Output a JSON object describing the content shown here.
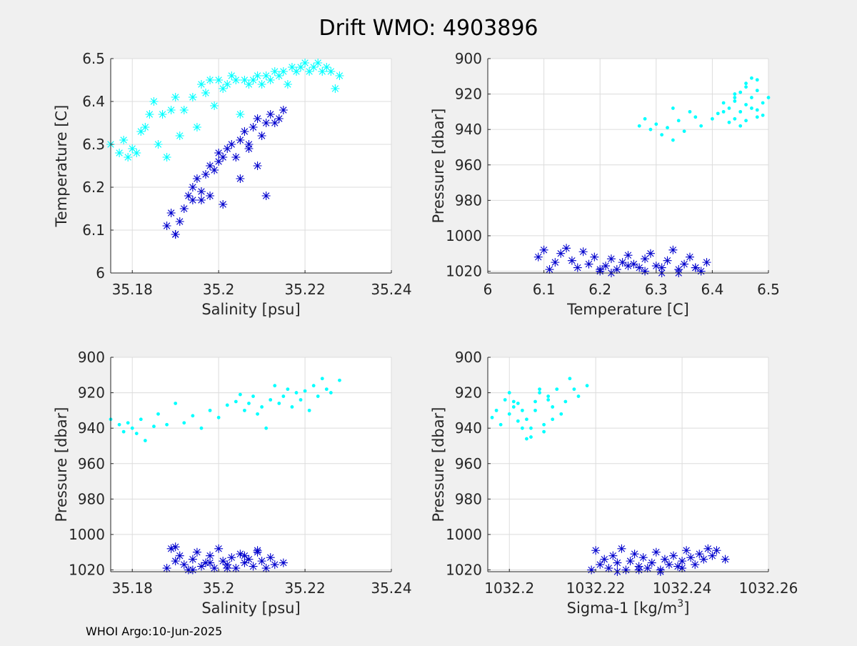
{
  "figure": {
    "title": "Drift WMO: 4903896",
    "footer": "WHOI Argo:10-Jun-2025"
  },
  "colors": {
    "cyan": "#00ffff",
    "blue": "#0000cd",
    "grid": "#dcdcdc",
    "axes_bg": "#ffffff"
  },
  "chart_data": [
    {
      "type": "scatter",
      "title": "",
      "xlabel": "Salinity [psu]",
      "ylabel": "Temperature [C]",
      "xlim": [
        35.175,
        35.24
      ],
      "ylim": [
        6.0,
        6.5
      ],
      "y_reversed": false,
      "xticks": [
        35.18,
        35.2,
        35.22,
        35.24
      ],
      "xtick_labels": [
        "35.18",
        "35.2",
        "35.22",
        "35.24"
      ],
      "yticks": [
        6.0,
        6.1,
        6.2,
        6.3,
        6.4,
        6.5
      ],
      "ytick_labels": [
        "6",
        "6.1",
        "6.2",
        "6.3",
        "6.4",
        "6.5"
      ],
      "grid": true,
      "series": [
        {
          "color": "cyan",
          "marker": "asterisk",
          "x": [
            35.175,
            35.177,
            35.178,
            35.179,
            35.18,
            35.181,
            35.182,
            35.183,
            35.184,
            35.185,
            35.186,
            35.187,
            35.188,
            35.189,
            35.19,
            35.191,
            35.192,
            35.194,
            35.195,
            35.196,
            35.197,
            35.198,
            35.199,
            35.2,
            35.201,
            35.202,
            35.203,
            35.204,
            35.205,
            35.206,
            35.207,
            35.208,
            35.209,
            35.21,
            35.211,
            35.212,
            35.213,
            35.214,
            35.215,
            35.216,
            35.217,
            35.218,
            35.219,
            35.22,
            35.221,
            35.222,
            35.223,
            35.224,
            35.225,
            35.226,
            35.227,
            35.228
          ],
          "y": [
            6.3,
            6.28,
            6.31,
            6.27,
            6.29,
            6.28,
            6.33,
            6.34,
            6.37,
            6.4,
            6.3,
            6.37,
            6.27,
            6.38,
            6.41,
            6.32,
            6.38,
            6.41,
            6.34,
            6.44,
            6.42,
            6.45,
            6.39,
            6.45,
            6.43,
            6.44,
            6.46,
            6.45,
            6.37,
            6.45,
            6.44,
            6.45,
            6.46,
            6.44,
            6.46,
            6.45,
            6.47,
            6.46,
            6.47,
            6.44,
            6.48,
            6.47,
            6.48,
            6.49,
            6.47,
            6.48,
            6.49,
            6.47,
            6.48,
            6.47,
            6.43,
            6.46
          ]
        },
        {
          "color": "blue",
          "marker": "asterisk",
          "x": [
            35.188,
            35.189,
            35.19,
            35.191,
            35.192,
            35.193,
            35.194,
            35.195,
            35.196,
            35.197,
            35.198,
            35.199,
            35.2,
            35.201,
            35.202,
            35.203,
            35.204,
            35.205,
            35.206,
            35.207,
            35.208,
            35.209,
            35.21,
            35.211,
            35.212,
            35.213,
            35.214,
            35.215,
            35.19,
            35.194,
            35.198,
            35.201,
            35.205,
            35.209,
            35.211,
            35.196,
            35.2,
            35.207
          ],
          "y": [
            6.11,
            6.14,
            6.09,
            6.12,
            6.15,
            6.18,
            6.2,
            6.22,
            6.19,
            6.23,
            6.25,
            6.24,
            6.28,
            6.27,
            6.29,
            6.3,
            6.27,
            6.31,
            6.33,
            6.29,
            6.34,
            6.36,
            6.32,
            6.35,
            6.37,
            6.35,
            6.36,
            6.38,
            6.09,
            6.17,
            6.18,
            6.16,
            6.22,
            6.25,
            6.18,
            6.17,
            6.26,
            6.3
          ]
        }
      ]
    },
    {
      "type": "scatter",
      "title": "",
      "xlabel": "Temperature [C]",
      "ylabel": "Pressure [dbar]",
      "xlim": [
        6.0,
        6.5
      ],
      "ylim": [
        900,
        1021
      ],
      "y_reversed": true,
      "xticks": [
        6.0,
        6.1,
        6.2,
        6.3,
        6.4,
        6.5
      ],
      "xtick_labels": [
        "6",
        "6.1",
        "6.2",
        "6.3",
        "6.4",
        "6.5"
      ],
      "yticks": [
        900,
        920,
        940,
        960,
        980,
        1000,
        1020
      ],
      "ytick_labels": [
        "900",
        "920",
        "940",
        "960",
        "980",
        "1000",
        "1020"
      ],
      "grid": true,
      "series": [
        {
          "color": "cyan",
          "marker": "dot",
          "x": [
            6.27,
            6.28,
            6.29,
            6.3,
            6.31,
            6.32,
            6.33,
            6.34,
            6.35,
            6.37,
            6.38,
            6.4,
            6.41,
            6.42,
            6.43,
            6.44,
            6.44,
            6.45,
            6.45,
            6.46,
            6.46,
            6.47,
            6.47,
            6.48,
            6.48,
            6.49,
            6.5,
            6.43,
            6.45,
            6.47,
            6.46,
            6.44,
            6.49,
            6.48,
            6.42,
            6.44,
            6.46,
            6.48,
            6.36,
            6.33
          ],
          "y": [
            938,
            934,
            940,
            937,
            943,
            939,
            946,
            935,
            941,
            933,
            938,
            934,
            931,
            925,
            928,
            922,
            934,
            919,
            930,
            914,
            926,
            911,
            922,
            918,
            933,
            925,
            922,
            936,
            938,
            928,
            916,
            920,
            932,
            912,
            930,
            924,
            935,
            929,
            930,
            928
          ]
        },
        {
          "color": "blue",
          "marker": "asterisk",
          "x": [
            6.09,
            6.1,
            6.11,
            6.12,
            6.13,
            6.14,
            6.15,
            6.16,
            6.17,
            6.18,
            6.19,
            6.2,
            6.21,
            6.22,
            6.23,
            6.24,
            6.25,
            6.26,
            6.27,
            6.28,
            6.29,
            6.3,
            6.31,
            6.32,
            6.33,
            6.34,
            6.35,
            6.36,
            6.37,
            6.38,
            6.39,
            6.2,
            6.22,
            6.25,
            6.28,
            6.31,
            6.34,
            6.37
          ],
          "y": [
            1012,
            1008,
            1019,
            1015,
            1010,
            1007,
            1014,
            1018,
            1009,
            1016,
            1012,
            1020,
            1017,
            1013,
            1019,
            1015,
            1011,
            1016,
            1018,
            1013,
            1010,
            1017,
            1021,
            1014,
            1008,
            1019,
            1016,
            1012,
            1018,
            1020,
            1015,
            1019,
            1021,
            1017,
            1020,
            1018,
            1021,
            1018
          ]
        }
      ]
    },
    {
      "type": "scatter",
      "title": "",
      "xlabel": "Salinity [psu]",
      "ylabel": "Pressure [dbar]",
      "xlim": [
        35.175,
        35.24
      ],
      "ylim": [
        900,
        1021
      ],
      "y_reversed": true,
      "xticks": [
        35.18,
        35.2,
        35.22,
        35.24
      ],
      "xtick_labels": [
        "35.18",
        "35.2",
        "35.22",
        "35.24"
      ],
      "yticks": [
        900,
        920,
        940,
        960,
        980,
        1000,
        1020
      ],
      "ytick_labels": [
        "900",
        "920",
        "940",
        "960",
        "980",
        "1000",
        "1020"
      ],
      "grid": true,
      "series": [
        {
          "color": "cyan",
          "marker": "dot",
          "x": [
            35.175,
            35.177,
            35.178,
            35.179,
            35.18,
            35.181,
            35.182,
            35.183,
            35.185,
            35.186,
            35.188,
            35.19,
            35.192,
            35.194,
            35.196,
            35.198,
            35.2,
            35.202,
            35.204,
            35.205,
            35.206,
            35.207,
            35.208,
            35.209,
            35.21,
            35.211,
            35.212,
            35.213,
            35.214,
            35.215,
            35.216,
            35.217,
            35.218,
            35.219,
            35.22,
            35.221,
            35.222,
            35.223,
            35.224,
            35.225,
            35.226,
            35.228
          ],
          "y": [
            935,
            938,
            942,
            937,
            940,
            943,
            935,
            947,
            939,
            932,
            938,
            926,
            937,
            933,
            940,
            930,
            934,
            927,
            925,
            921,
            930,
            926,
            922,
            932,
            928,
            940,
            924,
            916,
            926,
            922,
            918,
            928,
            920,
            924,
            919,
            930,
            916,
            922,
            912,
            918,
            920,
            913
          ]
        },
        {
          "color": "blue",
          "marker": "asterisk",
          "x": [
            35.188,
            35.189,
            35.19,
            35.191,
            35.192,
            35.193,
            35.194,
            35.195,
            35.196,
            35.197,
            35.198,
            35.199,
            35.2,
            35.201,
            35.202,
            35.203,
            35.204,
            35.205,
            35.206,
            35.207,
            35.208,
            35.209,
            35.21,
            35.211,
            35.212,
            35.213,
            35.215,
            35.19,
            35.194,
            35.198,
            35.202,
            35.206,
            35.209
          ],
          "y": [
            1019,
            1008,
            1015,
            1012,
            1017,
            1020,
            1014,
            1010,
            1018,
            1016,
            1012,
            1019,
            1008,
            1015,
            1017,
            1013,
            1019,
            1011,
            1016,
            1014,
            1018,
            1009,
            1015,
            1019,
            1013,
            1017,
            1016,
            1007,
            1020,
            1016,
            1019,
            1012,
            1010
          ]
        }
      ]
    },
    {
      "type": "scatter",
      "title": "",
      "xlabel": "Sigma-1 [kg/m",
      "xlabel_superscript": "3",
      "xlabel_suffix": "]",
      "ylabel": "Pressure [dbar]",
      "xlim": [
        1032.195,
        1032.26
      ],
      "ylim": [
        900,
        1021
      ],
      "y_reversed": true,
      "xticks": [
        1032.2,
        1032.22,
        1032.24,
        1032.26
      ],
      "xtick_labels": [
        "1032.2",
        "1032.22",
        "1032.24",
        "1032.26"
      ],
      "yticks": [
        900,
        920,
        940,
        960,
        980,
        1000,
        1020
      ],
      "ytick_labels": [
        "900",
        "920",
        "940",
        "960",
        "980",
        "1000",
        "1020"
      ],
      "grid": true,
      "series": [
        {
          "color": "cyan",
          "marker": "dot",
          "x": [
            1032.196,
            1032.197,
            1032.198,
            1032.199,
            1032.2,
            1032.201,
            1032.202,
            1032.203,
            1032.204,
            1032.205,
            1032.206,
            1032.207,
            1032.208,
            1032.209,
            1032.21,
            1032.211,
            1032.212,
            1032.213,
            1032.214,
            1032.215,
            1032.216,
            1032.218,
            1032.2,
            1032.202,
            1032.204,
            1032.206,
            1032.208,
            1032.21,
            1032.205,
            1032.207,
            1032.203,
            1032.209,
            1032.201
          ],
          "y": [
            934,
            930,
            938,
            924,
            932,
            928,
            936,
            930,
            946,
            940,
            925,
            920,
            938,
            922,
            928,
            918,
            932,
            925,
            912,
            918,
            922,
            916,
            920,
            926,
            935,
            930,
            942,
            935,
            945,
            918,
            940,
            924,
            925
          ]
        },
        {
          "color": "blue",
          "marker": "asterisk",
          "x": [
            1032.219,
            1032.22,
            1032.221,
            1032.222,
            1032.223,
            1032.224,
            1032.225,
            1032.226,
            1032.227,
            1032.228,
            1032.229,
            1032.23,
            1032.231,
            1032.232,
            1032.233,
            1032.234,
            1032.235,
            1032.236,
            1032.237,
            1032.238,
            1032.239,
            1032.24,
            1032.241,
            1032.242,
            1032.243,
            1032.244,
            1032.245,
            1032.246,
            1032.247,
            1032.248,
            1032.25,
            1032.225,
            1032.23,
            1032.235,
            1032.24
          ],
          "y": [
            1020,
            1009,
            1017,
            1014,
            1019,
            1012,
            1016,
            1008,
            1020,
            1015,
            1011,
            1018,
            1013,
            1019,
            1016,
            1010,
            1020,
            1014,
            1017,
            1012,
            1018,
            1015,
            1009,
            1013,
            1017,
            1011,
            1014,
            1008,
            1012,
            1009,
            1014,
            1021,
            1020,
            1021,
            1019
          ]
        }
      ]
    }
  ]
}
